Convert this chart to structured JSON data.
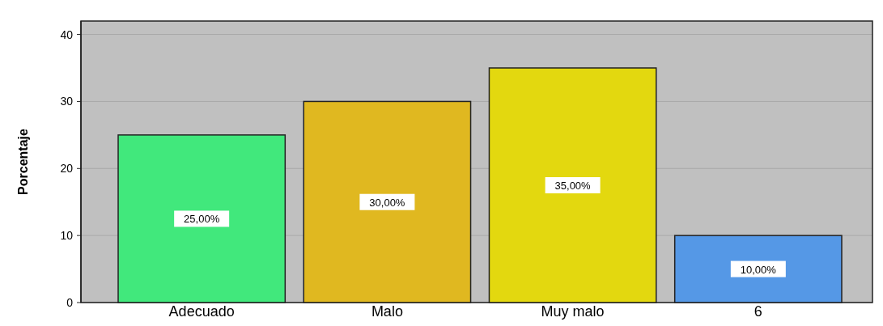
{
  "chart_data": {
    "type": "bar",
    "ylabel": "Porcentaje",
    "categories": [
      "Adecuado",
      "Malo",
      "Muy malo",
      "6"
    ],
    "values": [
      25,
      30,
      35,
      10
    ],
    "colors": [
      "#41e87c",
      "#e0b820",
      "#e3d80f",
      "#5598e6"
    ],
    "value_labels": [
      "25,00%",
      "30,00%",
      "35,00%",
      "10,00%"
    ],
    "ylim": [
      0,
      42
    ],
    "yticks": [
      0,
      10,
      20,
      30,
      40
    ],
    "grid": "y"
  }
}
